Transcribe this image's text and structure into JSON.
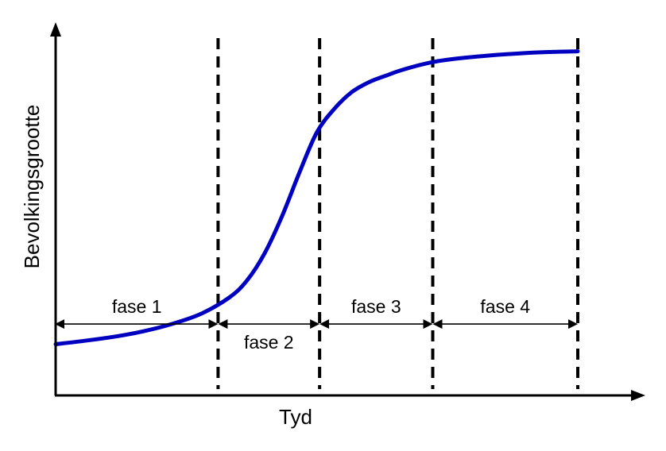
{
  "chart_data": {
    "type": "line",
    "xlabel": "Tyd",
    "ylabel": "Bevolkingsgrootte",
    "grid": false,
    "legend": "none",
    "xlim": [
      0,
      10
    ],
    "ylim": [
      0,
      10
    ],
    "series": [
      {
        "color": "#0000c0",
        "x": [
          0,
          0.5,
          1,
          1.5,
          2,
          2.5,
          3,
          3.3,
          3.6,
          3.9,
          4.2,
          4.5,
          4.8,
          5.1,
          5.4,
          5.7,
          6,
          6.5,
          7,
          7.5,
          8,
          8.5,
          9
        ],
        "y": [
          1.1,
          1.2,
          1.32,
          1.48,
          1.7,
          2.0,
          2.5,
          3.0,
          3.8,
          4.9,
          6.2,
          7.4,
          8.1,
          8.6,
          8.9,
          9.1,
          9.28,
          9.5,
          9.62,
          9.7,
          9.76,
          9.8,
          9.82
        ]
      }
    ],
    "phase_boundaries": [
      2.8,
      4.55,
      6.5,
      9.0
    ],
    "phases": [
      {
        "label": "fase 1",
        "from": 0,
        "to": 2.8,
        "label_position": "above"
      },
      {
        "label": "fase 2",
        "from": 2.8,
        "to": 4.55,
        "label_position": "below"
      },
      {
        "label": "fase 3",
        "from": 4.55,
        "to": 6.5,
        "label_position": "above"
      },
      {
        "label": "fase 4",
        "from": 6.5,
        "to": 9.0,
        "label_position": "above"
      }
    ],
    "phase_arrow_y": 1.7,
    "colors": {
      "curve": "#0000c0",
      "axes": "#000000",
      "boundaries": "#000000"
    }
  }
}
